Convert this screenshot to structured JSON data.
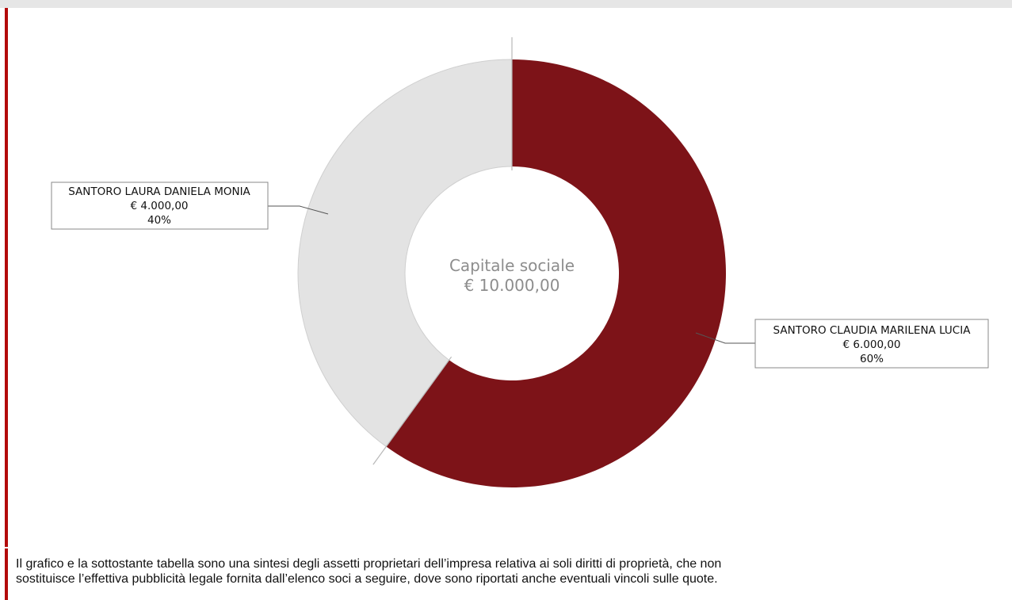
{
  "colors": {
    "accent_bar": "#b30b0b",
    "slice_primary": "#7d1318",
    "slice_secondary": "#e3e3e3",
    "label_center": "#8d8d8d"
  },
  "chart_data": {
    "type": "pie",
    "style": "donut",
    "center_title": "Capitale sociale",
    "center_value": "€ 10.000,00",
    "slices": [
      {
        "label": "SANTORO CLAUDIA MARILENA LUCIA",
        "amount": "€ 6.000,00",
        "percent_label": "60%",
        "value": 60,
        "color": "#7d1318"
      },
      {
        "label": "SANTORO LAURA DANIELA MONIA",
        "amount": "€ 4.000,00",
        "percent_label": "40%",
        "value": 40,
        "color": "#e3e3e3"
      }
    ]
  },
  "footer": {
    "line1": "Il grafico e la sottostante tabella sono una sintesi degli assetti proprietari dell’impresa relativa ai soli diritti di proprietà, che non",
    "line2": "sostituisce l’effettiva pubblicità legale fornita dall’elenco soci a seguire, dove sono riportati anche eventuali vincoli sulle quote."
  }
}
